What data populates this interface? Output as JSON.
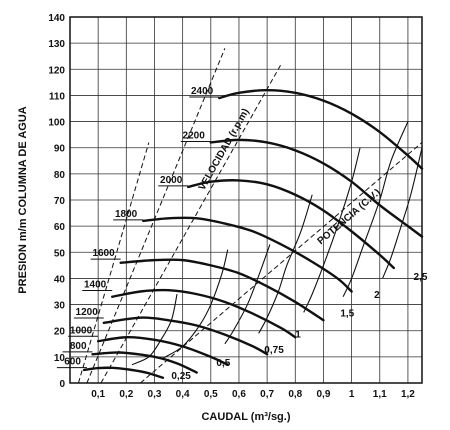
{
  "chart_data": {
    "type": "line",
    "title": "",
    "xlabel": "CAUDAL (m³/sg.)",
    "ylabel": "PRESION m/m COLUMNA DE AGUA",
    "xlim": [
      0,
      1.25
    ],
    "ylim": [
      0,
      140
    ],
    "x_ticks": [
      "0,1",
      "0,2",
      "0,3",
      "0,4",
      "0,5",
      "0,6",
      "0,7",
      "0,8",
      "0,9",
      "1",
      "1,1",
      "1,2"
    ],
    "y_ticks": [
      "0",
      "10",
      "20",
      "30",
      "40",
      "50",
      "60",
      "70",
      "80",
      "90",
      "100",
      "110",
      "120",
      "130",
      "140"
    ],
    "grid": true,
    "series": [
      {
        "name": "600",
        "points": [
          [
            0.05,
            5
          ],
          [
            0.1,
            5.7
          ],
          [
            0.15,
            5.8
          ],
          [
            0.2,
            5.3
          ],
          [
            0.27,
            4
          ],
          [
            0.33,
            2
          ]
        ]
      },
      {
        "name": "800",
        "points": [
          [
            0.08,
            11
          ],
          [
            0.15,
            11.6
          ],
          [
            0.2,
            11.5
          ],
          [
            0.3,
            10
          ],
          [
            0.38,
            7.5
          ],
          [
            0.45,
            4
          ]
        ]
      },
      {
        "name": "1000",
        "points": [
          [
            0.1,
            16
          ],
          [
            0.2,
            17.5
          ],
          [
            0.3,
            16.5
          ],
          [
            0.4,
            14
          ],
          [
            0.5,
            10
          ],
          [
            0.56,
            7
          ]
        ]
      },
      {
        "name": "1200",
        "points": [
          [
            0.12,
            23
          ],
          [
            0.25,
            25
          ],
          [
            0.35,
            24
          ],
          [
            0.45,
            22
          ],
          [
            0.55,
            18.5
          ],
          [
            0.65,
            14
          ],
          [
            0.7,
            11
          ]
        ]
      },
      {
        "name": "1400",
        "points": [
          [
            0.15,
            33
          ],
          [
            0.25,
            35
          ],
          [
            0.35,
            35.5
          ],
          [
            0.45,
            34
          ],
          [
            0.55,
            31
          ],
          [
            0.65,
            26.5
          ],
          [
            0.75,
            21
          ],
          [
            0.8,
            17.5
          ]
        ]
      },
      {
        "name": "1600",
        "points": [
          [
            0.18,
            46
          ],
          [
            0.3,
            47
          ],
          [
            0.4,
            47
          ],
          [
            0.5,
            45
          ],
          [
            0.6,
            42
          ],
          [
            0.7,
            37
          ],
          [
            0.8,
            31
          ],
          [
            0.9,
            24
          ]
        ]
      },
      {
        "name": "1800",
        "points": [
          [
            0.26,
            62
          ],
          [
            0.35,
            63
          ],
          [
            0.45,
            63
          ],
          [
            0.55,
            61
          ],
          [
            0.65,
            58
          ],
          [
            0.75,
            53
          ],
          [
            0.85,
            47
          ],
          [
            0.95,
            40
          ],
          [
            1.0,
            35
          ]
        ]
      },
      {
        "name": "2000",
        "points": [
          [
            0.42,
            75
          ],
          [
            0.5,
            77
          ],
          [
            0.6,
            77.5
          ],
          [
            0.7,
            76
          ],
          [
            0.8,
            72
          ],
          [
            0.9,
            66
          ],
          [
            1.0,
            58
          ],
          [
            1.1,
            49
          ],
          [
            1.15,
            44
          ]
        ]
      },
      {
        "name": "2200",
        "points": [
          [
            0.5,
            92
          ],
          [
            0.6,
            93
          ],
          [
            0.7,
            92
          ],
          [
            0.8,
            89
          ],
          [
            0.9,
            84
          ],
          [
            1.0,
            77
          ],
          [
            1.1,
            68
          ],
          [
            1.2,
            60
          ],
          [
            1.25,
            56
          ]
        ]
      },
      {
        "name": "2400",
        "points": [
          [
            0.53,
            109
          ],
          [
            0.6,
            111
          ],
          [
            0.7,
            112
          ],
          [
            0.8,
            111
          ],
          [
            0.9,
            108
          ],
          [
            1.0,
            103
          ],
          [
            1.1,
            96
          ],
          [
            1.2,
            87
          ],
          [
            1.25,
            82
          ]
        ]
      }
    ],
    "power_series": [
      {
        "name": "0,25",
        "points": [
          [
            0.22,
            7
          ],
          [
            0.28,
            10
          ],
          [
            0.32,
            16
          ],
          [
            0.36,
            24
          ],
          [
            0.38,
            34
          ]
        ]
      },
      {
        "name": "0,5",
        "points": [
          [
            0.33,
            9.5
          ],
          [
            0.4,
            14
          ],
          [
            0.46,
            22
          ],
          [
            0.5,
            30
          ],
          [
            0.54,
            42
          ],
          [
            0.56,
            51
          ]
        ]
      },
      {
        "name": "0,75",
        "points": [
          [
            0.55,
            15
          ],
          [
            0.58,
            20
          ],
          [
            0.63,
            30
          ],
          [
            0.67,
            41
          ],
          [
            0.71,
            53
          ]
        ]
      },
      {
        "name": "1",
        "points": [
          [
            0.67,
            19
          ],
          [
            0.7,
            25
          ],
          [
            0.74,
            35
          ],
          [
            0.77,
            45
          ],
          [
            0.82,
            58
          ],
          [
            0.86,
            72
          ]
        ]
      },
      {
        "name": "1,5",
        "points": [
          [
            0.83,
            27
          ],
          [
            0.86,
            34
          ],
          [
            0.9,
            45
          ],
          [
            0.95,
            60
          ],
          [
            1.0,
            77
          ],
          [
            1.03,
            90
          ]
        ]
      },
      {
        "name": "2",
        "points": [
          [
            0.97,
            33
          ],
          [
            1.0,
            40
          ],
          [
            1.04,
            52
          ],
          [
            1.1,
            70
          ],
          [
            1.14,
            85
          ],
          [
            1.2,
            100
          ]
        ]
      },
      {
        "name": "2,5",
        "points": [
          [
            1.11,
            40
          ],
          [
            1.14,
            48
          ],
          [
            1.17,
            58
          ],
          [
            1.21,
            72
          ],
          [
            1.25,
            90
          ]
        ]
      }
    ],
    "efficiency_lines": [
      {
        "points": [
          [
            0.03,
            0
          ],
          [
            0.28,
            92
          ]
        ]
      },
      {
        "points": [
          [
            0.06,
            0
          ],
          [
            0.55,
            128
          ]
        ]
      },
      {
        "name": "VELOCIDAD (r.p.m)",
        "points": [
          [
            0.11,
            0
          ],
          [
            0.75,
            122
          ]
        ]
      },
      {
        "name": "POTENCIA (C.V.)",
        "points": [
          [
            0.25,
            0
          ],
          [
            1.25,
            92
          ]
        ]
      }
    ],
    "rpm_label_positions": [
      {
        "label": "600",
        "x": 0.06,
        "y": 5.5
      },
      {
        "label": "800",
        "x": 0.08,
        "y": 11.5
      },
      {
        "label": "1000",
        "x": 0.1,
        "y": 17.5
      },
      {
        "label": "1200",
        "x": 0.12,
        "y": 24.5
      },
      {
        "label": "1400",
        "x": 0.15,
        "y": 35
      },
      {
        "label": "1600",
        "x": 0.18,
        "y": 47
      },
      {
        "label": "1800",
        "x": 0.26,
        "y": 62
      },
      {
        "label": "2000",
        "x": 0.42,
        "y": 75
      },
      {
        "label": "2200",
        "x": 0.5,
        "y": 92
      },
      {
        "label": "2400",
        "x": 0.53,
        "y": 109
      }
    ],
    "power_label_positions": [
      {
        "label": "0,25",
        "x": 0.36,
        "y": 3
      },
      {
        "label": "0,5",
        "x": 0.52,
        "y": 8
      },
      {
        "label": "0,75",
        "x": 0.69,
        "y": 13
      },
      {
        "label": "1",
        "x": 0.8,
        "y": 19
      },
      {
        "label": "1,5",
        "x": 0.96,
        "y": 27
      },
      {
        "label": "2",
        "x": 1.08,
        "y": 34
      },
      {
        "label": "2,5",
        "x": 1.22,
        "y": 41
      }
    ],
    "annotations": [
      "VELOCIDAD (r.p.m)",
      "POTENCIA (C.V.)"
    ]
  }
}
